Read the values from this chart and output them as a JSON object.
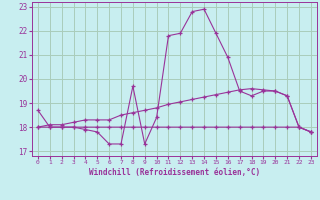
{
  "xlabel": "Windchill (Refroidissement éolien,°C)",
  "background_color": "#c8eef0",
  "grid_color": "#aaccbb",
  "line_color": "#993399",
  "xlim": [
    -0.5,
    23.5
  ],
  "ylim": [
    16.8,
    23.2
  ],
  "yticks": [
    17,
    18,
    19,
    20,
    21,
    22,
    23
  ],
  "xticks": [
    0,
    1,
    2,
    3,
    4,
    5,
    6,
    7,
    8,
    9,
    10,
    11,
    12,
    13,
    14,
    15,
    16,
    17,
    18,
    19,
    20,
    21,
    22,
    23
  ],
  "hours": [
    0,
    1,
    2,
    3,
    4,
    5,
    6,
    7,
    8,
    9,
    10,
    11,
    12,
    13,
    14,
    15,
    16,
    17,
    18,
    19,
    20,
    21,
    22,
    23
  ],
  "line1": [
    18.7,
    18.0,
    18.0,
    18.0,
    17.9,
    17.8,
    17.3,
    17.3,
    19.7,
    17.3,
    18.4,
    21.8,
    21.9,
    22.8,
    22.9,
    21.9,
    20.9,
    19.5,
    19.3,
    19.5,
    19.5,
    19.3,
    18.0,
    17.8
  ],
  "line2": [
    18.0,
    18.0,
    18.0,
    18.0,
    18.0,
    18.0,
    18.0,
    18.0,
    18.0,
    18.0,
    18.0,
    18.0,
    18.0,
    18.0,
    18.0,
    18.0,
    18.0,
    18.0,
    18.0,
    18.0,
    18.0,
    18.0,
    18.0,
    17.8
  ],
  "line3": [
    18.0,
    18.1,
    18.1,
    18.2,
    18.3,
    18.3,
    18.3,
    18.5,
    18.6,
    18.7,
    18.8,
    18.95,
    19.05,
    19.15,
    19.25,
    19.35,
    19.45,
    19.55,
    19.6,
    19.55,
    19.5,
    19.3,
    18.0,
    17.8
  ]
}
